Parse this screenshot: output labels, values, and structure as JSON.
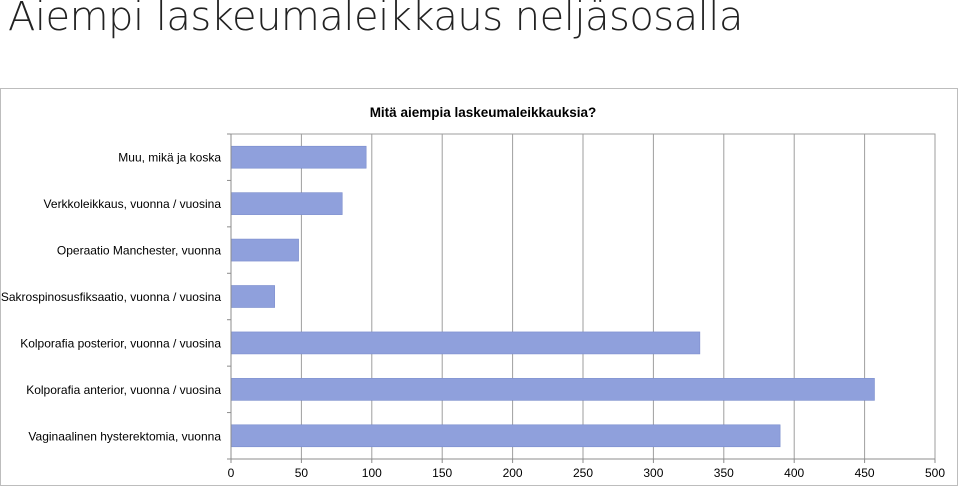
{
  "slide": {
    "title": "Aiempi laskeumaleikkaus neljäsosalla"
  },
  "chart_data": {
    "type": "bar",
    "orientation": "horizontal",
    "title": "Mitä aiempia laskeumaleikkauksia?",
    "categories": [
      "Muu, mikä ja koska",
      "Verkkoleikkaus, vuonna / vuosina",
      "Operaatio Manchester, vuonna",
      "Sakrospinosusfiksaatio, vuonna / vuosina",
      "Kolporafia posterior, vuonna / vuosina",
      "Kolporafia anterior, vuonna / vuosina",
      "Vaginaalinen hysterektomia, vuonna"
    ],
    "values": [
      96,
      79,
      48,
      31,
      333,
      457,
      390
    ],
    "xlim": [
      0,
      500
    ],
    "xticks": [
      0,
      50,
      100,
      150,
      200,
      250,
      300,
      350,
      400,
      450,
      500
    ],
    "grid": true,
    "legend": "none",
    "bar_color": "#8fa0dc",
    "bar_border": "#7a8ccc",
    "grid_color": "#9e9e9e"
  }
}
